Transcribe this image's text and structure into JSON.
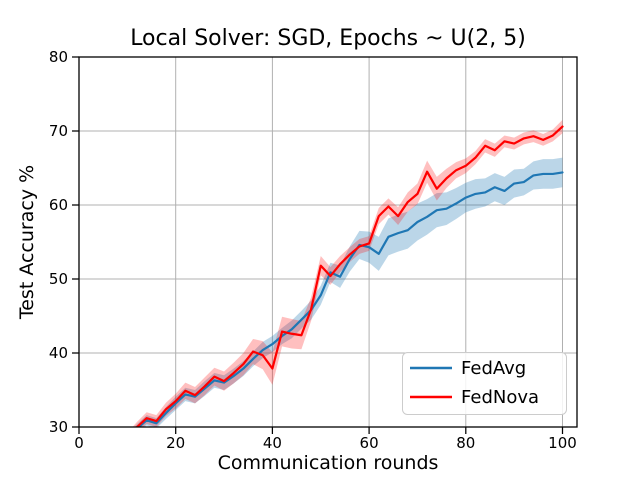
{
  "chart_data": {
    "type": "line",
    "title": "Local Solver: SGD, Epochs ~ U(2, 5)",
    "xlabel": "Communication rounds",
    "ylabel": "Test Accuracy %",
    "xlim": [
      0,
      103
    ],
    "ylim": [
      30,
      80
    ],
    "xticks": [
      "0",
      "20",
      "40",
      "60",
      "80",
      "100"
    ],
    "xtick_values": [
      0,
      20,
      40,
      60,
      80,
      100
    ],
    "yticks": [
      "30",
      "40",
      "50",
      "60",
      "70",
      "80"
    ],
    "ytick_values": [
      30,
      40,
      50,
      60,
      70,
      80
    ],
    "grid": true,
    "legend_position": "lower right",
    "x": [
      10,
      12,
      14,
      16,
      18,
      20,
      22,
      24,
      26,
      28,
      30,
      32,
      34,
      36,
      38,
      40,
      42,
      44,
      46,
      48,
      50,
      52,
      54,
      56,
      58,
      60,
      62,
      64,
      66,
      68,
      70,
      72,
      74,
      76,
      78,
      80,
      82,
      84,
      86,
      88,
      90,
      92,
      94,
      96,
      98,
      100
    ],
    "series": [
      {
        "name": "FedAvg",
        "color": "#1f77b4",
        "band_color": "rgba(31,119,180,0.30)",
        "values": [
          28.5,
          29.8,
          30.9,
          30.5,
          31.9,
          33.2,
          34.4,
          34.1,
          35.2,
          36.3,
          36.0,
          36.9,
          37.9,
          39.2,
          40.4,
          41.2,
          42.3,
          43.2,
          44.5,
          45.8,
          47.8,
          50.9,
          50.3,
          52.7,
          54.6,
          54.3,
          53.4,
          55.7,
          56.2,
          56.6,
          57.7,
          58.4,
          59.3,
          59.5,
          60.2,
          61.0,
          61.5,
          61.7,
          62.4,
          61.9,
          62.9,
          63.1,
          64.0,
          64.2,
          64.2,
          64.4
        ],
        "band_halfwidth": [
          0.5,
          0.6,
          0.7,
          0.7,
          0.8,
          0.9,
          0.9,
          0.9,
          1.0,
          1.0,
          1.0,
          1.0,
          1.0,
          1.0,
          1.1,
          1.1,
          1.1,
          1.2,
          1.2,
          1.3,
          1.3,
          1.3,
          1.5,
          1.7,
          1.9,
          2.1,
          2.3,
          2.5,
          2.5,
          2.5,
          2.5,
          2.4,
          2.3,
          2.2,
          2.1,
          2.0,
          2.0,
          1.9,
          1.9,
          1.9,
          1.9,
          1.8,
          1.9,
          2.0,
          2.0,
          2.0
        ]
      },
      {
        "name": "FedNova",
        "color": "#ff0000",
        "band_color": "rgba(255,0,0,0.25)",
        "values": [
          28.7,
          30.0,
          31.2,
          30.8,
          32.4,
          33.5,
          34.9,
          34.3,
          35.5,
          36.8,
          36.2,
          37.3,
          38.5,
          40.2,
          39.7,
          37.9,
          42.9,
          42.6,
          42.4,
          45.9,
          51.8,
          50.4,
          52.0,
          53.3,
          54.4,
          54.8,
          58.5,
          59.8,
          58.5,
          60.4,
          61.5,
          64.5,
          62.2,
          63.6,
          64.7,
          65.3,
          66.4,
          68.0,
          67.4,
          68.6,
          68.3,
          69.0,
          69.3,
          68.8,
          69.4,
          70.6
        ],
        "band_halfwidth": [
          0.5,
          0.7,
          0.8,
          0.8,
          0.9,
          1.0,
          1.1,
          1.1,
          1.2,
          1.2,
          1.3,
          1.4,
          1.5,
          1.7,
          1.9,
          2.2,
          2.0,
          2.0,
          1.9,
          1.6,
          1.3,
          1.2,
          1.1,
          1.0,
          1.0,
          1.0,
          1.1,
          1.1,
          1.2,
          1.3,
          1.4,
          1.5,
          1.6,
          1.3,
          1.1,
          1.0,
          0.9,
          0.9,
          0.9,
          0.8,
          0.8,
          0.8,
          0.8,
          0.8,
          0.8,
          0.9
        ]
      }
    ]
  },
  "layout_colors": {
    "grid": "#b0b0b0",
    "spine": "#000000",
    "background": "#ffffff"
  }
}
